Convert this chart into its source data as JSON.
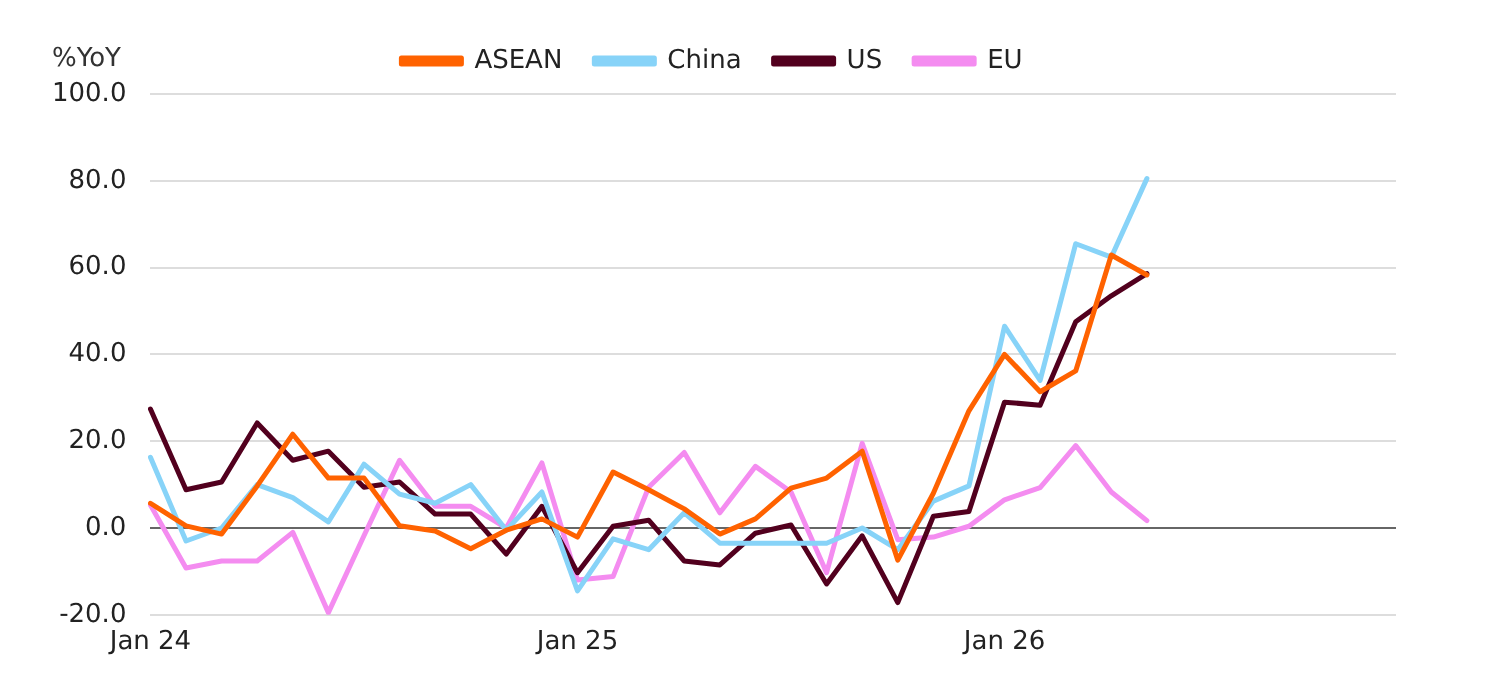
{
  "chart_data": {
    "type": "line",
    "ylabel": "%YoY",
    "categories": [
      "Jan 24",
      null,
      null,
      null,
      null,
      null,
      null,
      null,
      null,
      null,
      null,
      null,
      "Jan 25",
      null,
      null,
      null,
      null,
      null,
      null,
      null,
      null,
      null,
      null,
      null,
      "Jan 26",
      null,
      null,
      null,
      null,
      null,
      null,
      null,
      null,
      null,
      null,
      null
    ],
    "series": [
      {
        "name": "ASEAN",
        "color": "#ff6200",
        "values": [
          5.7,
          0.5,
          -1.4,
          9.7,
          21.6,
          11.5,
          11.5,
          0.5,
          -0.7,
          -4.8,
          -0.5,
          2.1,
          -2.1,
          12.9,
          8.8,
          4.4,
          -1.4,
          2.1,
          9.2,
          11.5,
          17.7,
          -7.4,
          8,
          27,
          40,
          31.4,
          36.2,
          62.9,
          58.3,
          null,
          null,
          null,
          null,
          null,
          null,
          null
        ]
      },
      {
        "name": "China",
        "color": "#87d3f8",
        "values": [
          16.3,
          -3,
          0,
          10,
          7,
          1.4,
          14.7,
          7.8,
          5.7,
          10,
          -0.5,
          8.3,
          -14.5,
          -2.5,
          -5,
          3.5,
          -3.5,
          -3.5,
          -3.5,
          -3.5,
          0,
          -5,
          6.2,
          9.7,
          46.5,
          34,
          65.5,
          62.4,
          80.5,
          null,
          null,
          null,
          null,
          null,
          null,
          null
        ]
      },
      {
        "name": "US",
        "color": "#52001e",
        "values": [
          27.4,
          8.8,
          10.6,
          24.2,
          15.6,
          17.7,
          9.4,
          10.6,
          3.2,
          3.2,
          -6,
          5,
          -10.3,
          0.4,
          1.8,
          -7.6,
          -8.5,
          -1.2,
          0.7,
          -12.9,
          -1.8,
          -17.2,
          2.7,
          3.8,
          29,
          28.3,
          47.5,
          53.5,
          58.6,
          null,
          null,
          null,
          null,
          null,
          null,
          null
        ]
      },
      {
        "name": "EU",
        "color": "#f48cf0",
        "values": [
          5.3,
          -9.2,
          -7.6,
          -7.6,
          -1,
          -19.5,
          -1.8,
          15.6,
          5,
          5,
          0,
          15,
          -12,
          -11.2,
          9.4,
          17.4,
          3.5,
          14.2,
          8.3,
          -10.3,
          19.5,
          -2.7,
          -2.1,
          0.4,
          6.5,
          9.3,
          19,
          8.3,
          1.7,
          null,
          null,
          null,
          null,
          null,
          null,
          null
        ]
      }
    ],
    "ylim": [
      -20,
      100
    ],
    "yticks": [
      {
        "value": -20,
        "label": "-20.0"
      },
      {
        "value": 0,
        "label": "0.0"
      },
      {
        "value": 20,
        "label": "20.0"
      },
      {
        "value": 40,
        "label": "40.0"
      },
      {
        "value": 60,
        "label": "60.0"
      },
      {
        "value": 80,
        "label": "80.0"
      },
      {
        "value": 100,
        "label": "100.0"
      }
    ],
    "grid": "y",
    "legend": "top",
    "marker": "none",
    "line_style": "solid"
  }
}
